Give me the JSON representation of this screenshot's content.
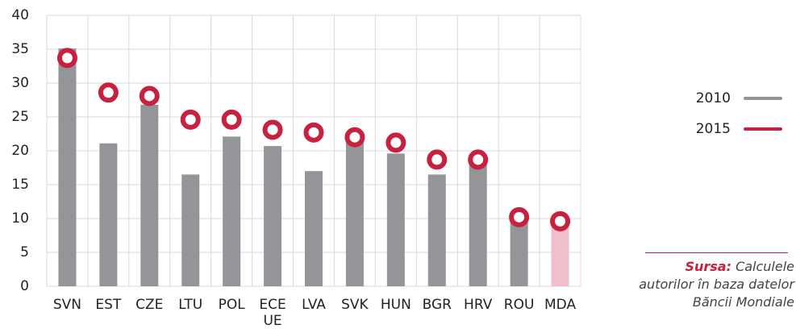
{
  "chart_data": {
    "type": "bar",
    "categories": [
      "SVN",
      "EST",
      "CZE",
      "LTU",
      "POL",
      "ECE UE",
      "LVA",
      "SVK",
      "HUN",
      "BGR",
      "HRV",
      "ROU",
      "MDA"
    ],
    "series": [
      {
        "name": "2010",
        "type": "bar",
        "color": "#939598",
        "colors": [
          "#939598",
          "#939598",
          "#939598",
          "#939598",
          "#939598",
          "#939598",
          "#939598",
          "#939598",
          "#939598",
          "#939598",
          "#939598",
          "#939598",
          "#f1bfc9"
        ],
        "values": [
          35.1,
          21.1,
          26.8,
          16.5,
          22.1,
          20.7,
          17,
          21.5,
          19.6,
          16.5,
          18.1,
          10.1,
          9.4
        ]
      },
      {
        "name": "2015",
        "type": "scatter",
        "color": "#c8203f",
        "values": [
          33.7,
          28.6,
          28.1,
          24.6,
          24.6,
          23.1,
          22.7,
          22,
          21.2,
          18.7,
          18.7,
          10.2,
          9.6
        ]
      }
    ],
    "ylim": [
      0,
      40
    ],
    "yticks": [
      0,
      5,
      10,
      15,
      20,
      25,
      30,
      35,
      40
    ],
    "grid": true,
    "legend": "right",
    "source_label": "Sursa:",
    "source_text": "Calculele autorilor în baza datelor Băncii Mondiale"
  }
}
